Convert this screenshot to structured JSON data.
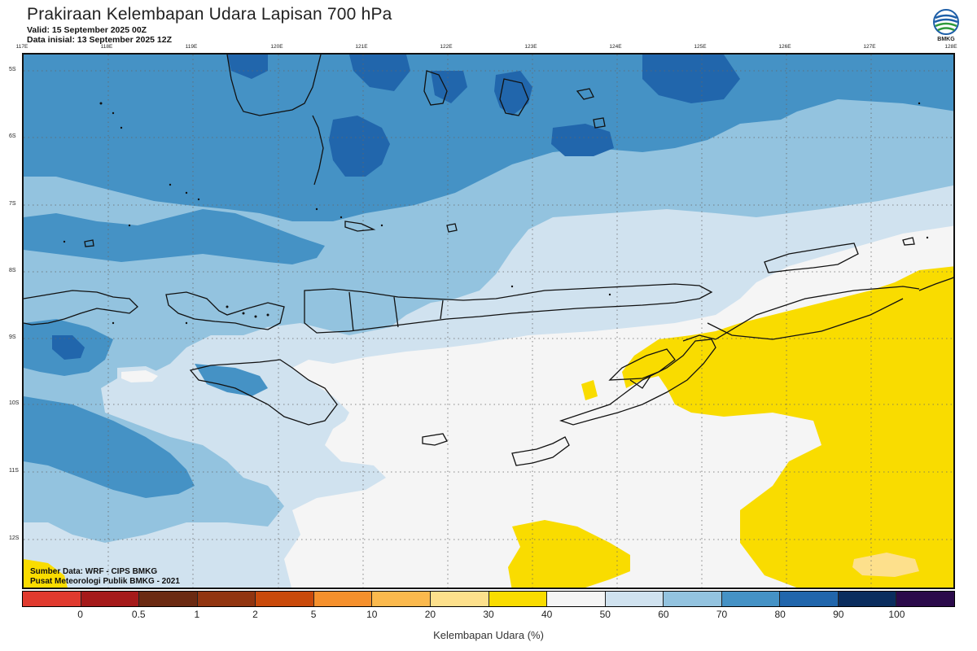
{
  "title": "Prakiraan Kelembapan Udara Lapisan 700 hPa",
  "valid": "Valid: 15 September 2025 00Z",
  "initial": "Data inisial: 13 September 2025 12Z",
  "logo_text": "BMKG",
  "lon_ticks": [
    "117E",
    "118E",
    "119E",
    "120E",
    "121E",
    "122E",
    "123E",
    "124E",
    "125E",
    "126E",
    "127E",
    "128E"
  ],
  "lat_ticks": [
    "5S",
    "6S",
    "7S",
    "8S",
    "9S",
    "10S",
    "11S",
    "12S"
  ],
  "source": "Sumber Data: WRF - CIPS BMKG",
  "publisher": "Pusat Meteorologi Publik BMKG - 2021",
  "colorbar": {
    "colors": [
      "#e03a2e",
      "#a51a1a",
      "#6b2a12",
      "#913510",
      "#c94a0b",
      "#f5902c",
      "#fbb94d",
      "#fde08c",
      "#f9dc00",
      "#f5f5f5",
      "#d0e2ef",
      "#93c3df",
      "#4592c5",
      "#2166ac",
      "#0a2d5e",
      "#2b0a4b"
    ],
    "labels": [
      "0",
      "0.5",
      "1",
      "2",
      "5",
      "10",
      "20",
      "30",
      "40",
      "50",
      "60",
      "70",
      "80",
      "90",
      "100"
    ],
    "title": "Kelembapan Udara (%)"
  },
  "fill_colors": {
    "c50_60": "#d0e2ef",
    "c60_70": "#93c3df",
    "c70_80": "#4592c5",
    "c80_90": "#2166ac",
    "c30_40": "#f9dc00",
    "c20_30": "#fde08c",
    "background": "#f5f5f5"
  }
}
